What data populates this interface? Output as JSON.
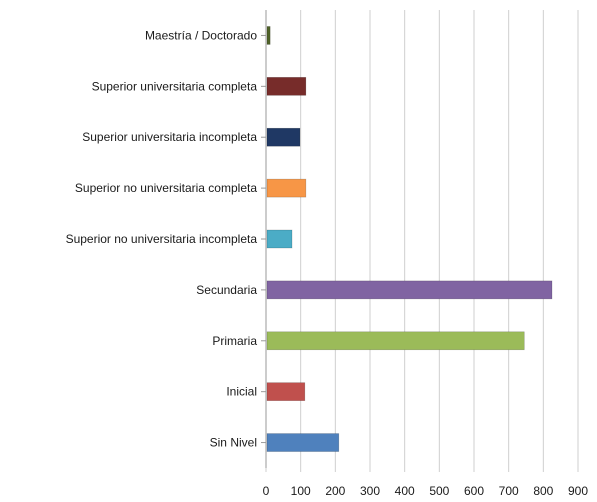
{
  "chart_data": {
    "type": "bar",
    "orientation": "horizontal",
    "categories": [
      "Maestría / Doctorado",
      "Superior universitaria completa",
      "Superior universitaria incompleta",
      "Superior no universitaria completa",
      "Superior no universitaria incompleta",
      "Secundaria",
      "Primaria",
      "Inicial",
      "Sin Nivel"
    ],
    "values": [
      12,
      115,
      98,
      115,
      75,
      825,
      745,
      112,
      210
    ],
    "colors": [
      "#4f6228",
      "#772c2a",
      "#1f3864",
      "#f79646",
      "#4bacc6",
      "#8064a2",
      "#9bbb59",
      "#c0504d",
      "#4f81bd"
    ],
    "xlim": [
      0,
      900
    ],
    "xticks": [
      0,
      100,
      200,
      300,
      400,
      500,
      600,
      700,
      800,
      900
    ],
    "xtick_labels": [
      "0",
      "100",
      "200",
      "300",
      "400",
      "500",
      "600",
      "700",
      "800",
      "900"
    ],
    "grid": true,
    "legend": "none"
  }
}
